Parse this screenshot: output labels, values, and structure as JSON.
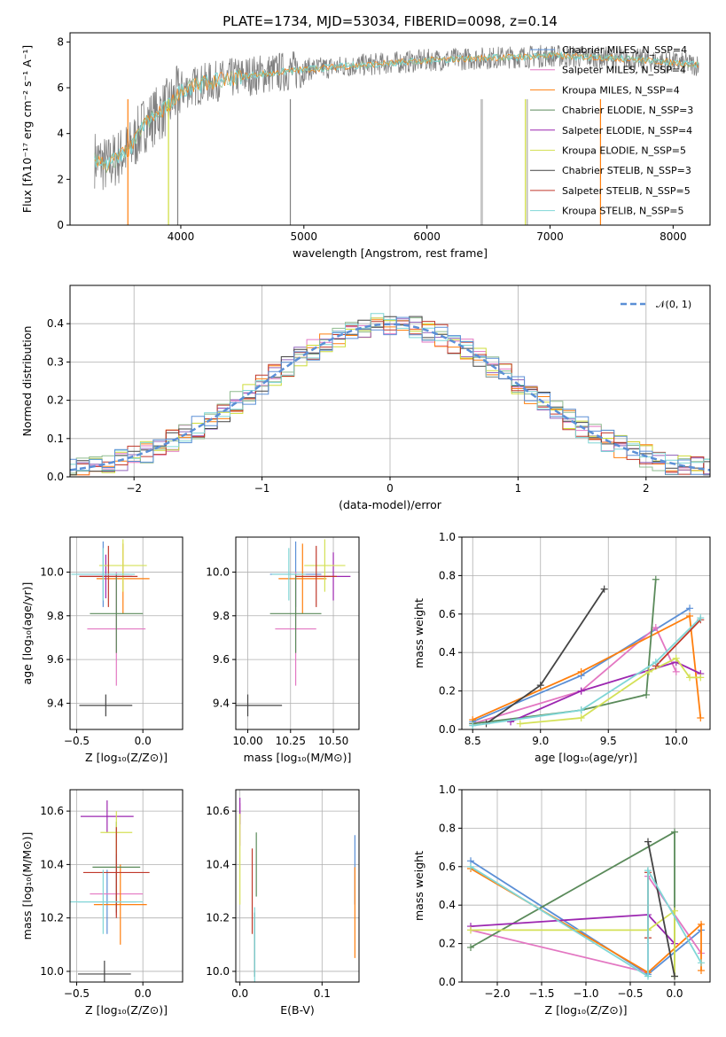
{
  "title": "PLATE=1734, MJD=53034, FIBERID=0098, z=0.14",
  "series_colors": [
    "#e377c2",
    "#ff7f0e",
    "#9467bd",
    "#8fbc8f",
    "#cddc39",
    "#444444",
    "#c0392b",
    "#7fd6d6",
    "#5b8fd6"
  ],
  "spectrum": {
    "xlabel": "wavelength [Angstrom, rest frame]",
    "ylabel": "Flux [fλ10⁻¹⁷ erg cm⁻² s⁻¹ A⁻¹]",
    "xticks": [
      "4000",
      "5000",
      "6000",
      "7000",
      "8000"
    ],
    "yticks": [
      "0",
      "2",
      "4",
      "6",
      "8"
    ],
    "legend": [
      {
        "label": "Chabrier MILES, N_SSP=4",
        "color": "#5b8fd6"
      },
      {
        "label": "Salpeter MILES, N_SSP=4",
        "color": "#e377c2"
      },
      {
        "label": "Kroupa MILES, N_SSP=4",
        "color": "#ff7f0e"
      },
      {
        "label": "Chabrier ELODIE, N_SSP=3",
        "color": "#5a8a5a"
      },
      {
        "label": "Salpeter ELODIE, N_SSP=4",
        "color": "#9c27b0"
      },
      {
        "label": "Kroupa ELODIE, N_SSP=5",
        "color": "#d4e157"
      },
      {
        "label": "Chabrier STELIB, N_SSP=3",
        "color": "#444444"
      },
      {
        "label": "Salpeter STELIB, N_SSP=5",
        "color": "#c0392b"
      },
      {
        "label": "Kroupa STELIB, N_SSP=5",
        "color": "#7fd6d6"
      }
    ]
  },
  "residuals": {
    "xlabel": "(data-model)/error",
    "ylabel": "Normed distribution",
    "xticks": [
      "−2",
      "−1",
      "0",
      "1",
      "2"
    ],
    "yticks": [
      "0.0",
      "0.1",
      "0.2",
      "0.3",
      "0.4"
    ],
    "legend_label": "𝒩(0, 1)"
  },
  "panels": {
    "z_age": {
      "xlabel": "Z [log₁₀(Z/Z⊙)]",
      "ylabel": "age  [log₁₀(age/yr)]",
      "xticks": [
        "−0.5",
        "0.0"
      ],
      "yticks": [
        "9.4",
        "9.6",
        "9.8",
        "10.0"
      ]
    },
    "mass_age": {
      "xlabel": "mass [log₁₀(M/M⊙)]",
      "xticks": [
        "10.00",
        "10.25",
        "10.50"
      ],
      "yticks": [
        "9.4",
        "9.6",
        "9.8",
        "10.0"
      ]
    },
    "age_weight": {
      "xlabel": "age  [log₁₀(age/yr)]",
      "ylabel": "mass weight",
      "xticks": [
        "8.5",
        "9.0",
        "9.5",
        "10.0"
      ],
      "yticks": [
        "0.0",
        "0.2",
        "0.4",
        "0.6",
        "0.8",
        "1.0"
      ]
    },
    "z_mass": {
      "xlabel": "Z [log₁₀(Z/Z⊙)]",
      "ylabel": "mass [log₁₀(M/M⊙)]",
      "xticks": [
        "−0.5",
        "0.0"
      ],
      "yticks": [
        "10.0",
        "10.2",
        "10.4",
        "10.6"
      ]
    },
    "ebv_mass": {
      "xlabel": "E(B-V)",
      "xticks": [
        "0.0",
        "0.1"
      ],
      "yticks": [
        "10.0",
        "10.2",
        "10.4",
        "10.6"
      ]
    },
    "z_weight": {
      "xlabel": "Z [log₁₀(Z/Z⊙)]",
      "ylabel": "mass weight",
      "xticks": [
        "−2.0",
        "−1.5",
        "−1.0",
        "−0.5",
        "0.0"
      ],
      "yticks": [
        "0.0",
        "0.2",
        "0.4",
        "0.6",
        "0.8",
        "1.0"
      ]
    }
  },
  "chart_data": [
    {
      "type": "line",
      "xlim": [
        3100,
        8300
      ],
      "ylim": [
        0,
        8.4
      ],
      "continuum": {
        "x": [
          3300,
          3400,
          3500,
          3600,
          3700,
          3800,
          3900,
          4000,
          4200,
          4500,
          5000,
          5500,
          6000,
          6500,
          7000,
          7500,
          8000,
          8200
        ],
        "y": [
          2.9,
          2.6,
          3.0,
          3.4,
          4.4,
          4.8,
          5.2,
          5.9,
          6.2,
          6.5,
          6.8,
          7.0,
          7.2,
          7.3,
          7.4,
          7.3,
          7.1,
          7.0
        ]
      }
    },
    {
      "type": "bar",
      "xlim": [
        -2.5,
        2.5
      ],
      "ylim": [
        0,
        0.5
      ],
      "gaussian": {
        "mean": 0,
        "sigma": 1
      }
    },
    {
      "type": "scatter",
      "xlim": [
        -0.55,
        0.3
      ],
      "ylim": [
        9.28,
        10.16
      ],
      "points": [
        {
          "x": -0.3,
          "xe": 0.2,
          "y": 9.99,
          "ye": 0.15,
          "color": "#5b8fd6"
        },
        {
          "x": -0.2,
          "xe": 0.22,
          "y": 9.74,
          "ye": 0.26,
          "color": "#e377c2"
        },
        {
          "x": -0.15,
          "xe": 0.2,
          "y": 9.97,
          "ye": 0.16,
          "color": "#ff7f0e"
        },
        {
          "x": -0.2,
          "xe": 0.2,
          "y": 9.81,
          "ye": 0.18,
          "color": "#5a8a5a"
        },
        {
          "x": -0.28,
          "xe": 0.2,
          "y": 9.98,
          "ye": 0.1,
          "color": "#9c27b0"
        },
        {
          "x": -0.15,
          "xe": 0.18,
          "y": 10.03,
          "ye": 0.12,
          "color": "#d4e157"
        },
        {
          "x": -0.28,
          "xe": 0.2,
          "y": 9.39,
          "ye": 0.05,
          "color": "#444444"
        },
        {
          "x": -0.26,
          "xe": 0.22,
          "y": 9.98,
          "ye": 0.14,
          "color": "#c0392b"
        },
        {
          "x": -0.3,
          "xe": 0.24,
          "y": 9.99,
          "ye": 0.12,
          "color": "#7fd6d6"
        }
      ]
    },
    {
      "type": "scatter",
      "xlim": [
        9.93,
        10.65
      ],
      "ylim": [
        9.28,
        10.16
      ],
      "points": [
        {
          "x": 10.28,
          "xe": 0.15,
          "y": 9.99,
          "ye": 0.15,
          "color": "#5b8fd6"
        },
        {
          "x": 10.28,
          "xe": 0.12,
          "y": 9.74,
          "ye": 0.26,
          "color": "#e377c2"
        },
        {
          "x": 10.32,
          "xe": 0.14,
          "y": 9.97,
          "ye": 0.16,
          "color": "#ff7f0e"
        },
        {
          "x": 10.28,
          "xe": 0.15,
          "y": 9.81,
          "ye": 0.18,
          "color": "#5a8a5a"
        },
        {
          "x": 10.5,
          "xe": 0.1,
          "y": 9.98,
          "ye": 0.11,
          "color": "#9c27b0"
        },
        {
          "x": 10.45,
          "xe": 0.12,
          "y": 10.03,
          "ye": 0.12,
          "color": "#d4e157"
        },
        {
          "x": 10.0,
          "xe": 0.2,
          "y": 9.39,
          "ye": 0.05,
          "color": "#444444"
        },
        {
          "x": 10.4,
          "xe": 0.12,
          "y": 9.98,
          "ye": 0.14,
          "color": "#c0392b"
        },
        {
          "x": 10.24,
          "xe": 0.1,
          "y": 9.99,
          "ye": 0.12,
          "color": "#7fd6d6"
        }
      ]
    },
    {
      "type": "line",
      "xlim": [
        8.42,
        10.25
      ],
      "ylim": [
        0,
        1
      ],
      "series": [
        {
          "color": "#5b8fd6",
          "x": [
            8.5,
            9.3,
            10.1
          ],
          "y": [
            0.04,
            0.28,
            0.63
          ]
        },
        {
          "color": "#e377c2",
          "x": [
            8.5,
            9.3,
            9.85,
            10.0
          ],
          "y": [
            0.03,
            0.2,
            0.53,
            0.3
          ]
        },
        {
          "color": "#ff7f0e",
          "x": [
            8.5,
            9.3,
            10.1,
            10.18
          ],
          "y": [
            0.05,
            0.3,
            0.59,
            0.06
          ]
        },
        {
          "color": "#5a8a5a",
          "x": [
            8.5,
            9.3,
            9.78,
            9.85
          ],
          "y": [
            0.03,
            0.1,
            0.18,
            0.78
          ]
        },
        {
          "color": "#9c27b0",
          "x": [
            8.78,
            9.3,
            10.0,
            10.18
          ],
          "y": [
            0.04,
            0.2,
            0.35,
            0.29
          ]
        },
        {
          "color": "#d4e157",
          "x": [
            8.85,
            9.3,
            9.8,
            10.0,
            10.1,
            10.18
          ],
          "y": [
            0.03,
            0.06,
            0.3,
            0.37,
            0.27,
            0.27
          ]
        },
        {
          "color": "#444444",
          "x": [
            8.6,
            9.0,
            9.47
          ],
          "y": [
            0.03,
            0.23,
            0.73
          ]
        },
        {
          "color": "#c0392b",
          "x": [
            9.85,
            10.18
          ],
          "y": [
            0.33,
            0.57
          ]
        },
        {
          "color": "#7fd6d6",
          "x": [
            8.5,
            9.3,
            9.85,
            10.18
          ],
          "y": [
            0.02,
            0.1,
            0.35,
            0.58
          ]
        }
      ]
    },
    {
      "type": "scatter",
      "xlim": [
        -0.55,
        0.3
      ],
      "ylim": [
        9.96,
        10.68
      ],
      "points": [
        {
          "x": -0.27,
          "xe": 0.22,
          "y": 10.26,
          "ye": 0.12,
          "color": "#5b8fd6"
        },
        {
          "x": -0.2,
          "xe": 0.2,
          "y": 10.29,
          "ye": 0.08,
          "color": "#e377c2"
        },
        {
          "x": -0.17,
          "xe": 0.2,
          "y": 10.25,
          "ye": 0.15,
          "color": "#ff7f0e"
        },
        {
          "x": -0.2,
          "xe": 0.18,
          "y": 10.39,
          "ye": 0.17,
          "color": "#5a8a5a"
        },
        {
          "x": -0.27,
          "xe": 0.2,
          "y": 10.58,
          "ye": 0.06,
          "color": "#9c27b0"
        },
        {
          "x": -0.2,
          "xe": 0.12,
          "y": 10.52,
          "ye": 0.08,
          "color": "#d4e157"
        },
        {
          "x": -0.29,
          "xe": 0.2,
          "y": 9.99,
          "ye": 0.05,
          "color": "#444444"
        },
        {
          "x": -0.2,
          "xe": 0.25,
          "y": 10.37,
          "ye": 0.17,
          "color": "#c0392b"
        },
        {
          "x": -0.3,
          "xe": 0.3,
          "y": 10.26,
          "ye": 0.12,
          "color": "#7fd6d6"
        }
      ]
    },
    {
      "type": "scatter",
      "xlim": [
        -0.005,
        0.145
      ],
      "ylim": [
        9.96,
        10.68
      ],
      "points": [
        {
          "x": 0.14,
          "xe": 0,
          "y": 10.38,
          "ye": 0.13,
          "color": "#5b8fd6"
        },
        {
          "x": 0.0,
          "xe": 0,
          "y": 10.55,
          "ye": 0.08,
          "color": "#e377c2"
        },
        {
          "x": 0.14,
          "xe": 0,
          "y": 10.22,
          "ye": 0.17,
          "color": "#ff7f0e"
        },
        {
          "x": 0.02,
          "xe": 0,
          "y": 10.4,
          "ye": 0.12,
          "color": "#5a8a5a"
        },
        {
          "x": 0.0,
          "xe": 0,
          "y": 10.6,
          "ye": 0.05,
          "color": "#9c27b0"
        },
        {
          "x": 0.0,
          "xe": 0,
          "y": 10.42,
          "ye": 0.17,
          "color": "#d4e157"
        },
        {
          "x": 0.018,
          "xe": 0,
          "y": 10.1,
          "ye": 0.12,
          "color": "#444444"
        },
        {
          "x": 0.015,
          "xe": 0,
          "y": 10.3,
          "ye": 0.16,
          "color": "#c0392b"
        },
        {
          "x": 0.018,
          "xe": 0,
          "y": 10.1,
          "ye": 0.14,
          "color": "#7fd6d6"
        }
      ]
    },
    {
      "type": "line",
      "xlim": [
        -2.4,
        0.4
      ],
      "ylim": [
        0,
        1
      ],
      "series": [
        {
          "color": "#5b8fd6",
          "x": [
            -2.3,
            -0.3,
            0.3
          ],
          "y": [
            0.63,
            0.04,
            0.27
          ]
        },
        {
          "color": "#e377c2",
          "x": [
            -2.3,
            -0.3,
            -0.3,
            0.3
          ],
          "y": [
            0.27,
            0.05,
            0.55,
            0.15
          ]
        },
        {
          "color": "#ff7f0e",
          "x": [
            -2.3,
            -0.3,
            0.3,
            0.3
          ],
          "y": [
            0.59,
            0.05,
            0.3,
            0.06
          ]
        },
        {
          "color": "#5a8a5a",
          "x": [
            -2.3,
            0.0,
            0.0
          ],
          "y": [
            0.18,
            0.78,
            0.03
          ]
        },
        {
          "color": "#9c27b0",
          "x": [
            -2.3,
            -0.3,
            0.0
          ],
          "y": [
            0.29,
            0.35,
            0.2
          ]
        },
        {
          "color": "#d4e157",
          "x": [
            -2.3,
            -0.3,
            0.0,
            0.0
          ],
          "y": [
            0.27,
            0.27,
            0.37,
            0.03
          ]
        },
        {
          "color": "#444444",
          "x": [
            -0.3,
            0.0
          ],
          "y": [
            0.73,
            0.03
          ]
        },
        {
          "color": "#c0392b",
          "x": [
            -0.3,
            -0.3
          ],
          "y": [
            0.23,
            0.57
          ]
        },
        {
          "color": "#7fd6d6",
          "x": [
            -2.3,
            -0.3,
            -0.3,
            0.3
          ],
          "y": [
            0.6,
            0.03,
            0.58,
            0.1
          ]
        }
      ]
    }
  ]
}
